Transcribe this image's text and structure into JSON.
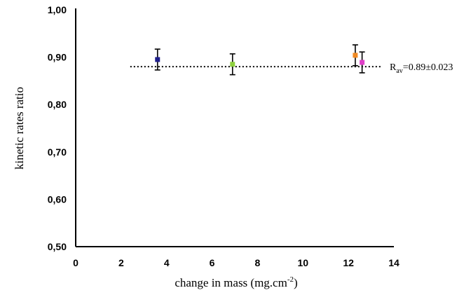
{
  "chart_data": {
    "type": "scatter",
    "title": "",
    "xlabel": "change in mass (mg.cm",
    "xlabel_superscript": "-2",
    "xlabel_suffix": ")",
    "ylabel": "kinetic rates ratio",
    "xlim": [
      0,
      14
    ],
    "ylim": [
      0.5,
      1.0
    ],
    "x_ticks": [
      "0",
      "2",
      "4",
      "6",
      "8",
      "10",
      "12",
      "14"
    ],
    "y_ticks": [
      "0,50",
      "0,60",
      "0,70",
      "0,80",
      "0,90",
      "1,00"
    ],
    "grid": false,
    "points": [
      {
        "x": 3.6,
        "y": 0.895,
        "err": 0.022,
        "color": "#1f1f8c"
      },
      {
        "x": 6.9,
        "y": 0.885,
        "err": 0.022,
        "color": "#8fd13f"
      },
      {
        "x": 12.3,
        "y": 0.904,
        "err": 0.022,
        "color": "#f08a24"
      },
      {
        "x": 12.6,
        "y": 0.889,
        "err": 0.022,
        "color": "#e040c8"
      }
    ],
    "average_line": {
      "y": 0.88,
      "x_start": 2.4,
      "x_end": 13.5
    },
    "annotation": {
      "prefix": "R",
      "subscript": "av",
      "text": "=0.89±0.023"
    }
  }
}
